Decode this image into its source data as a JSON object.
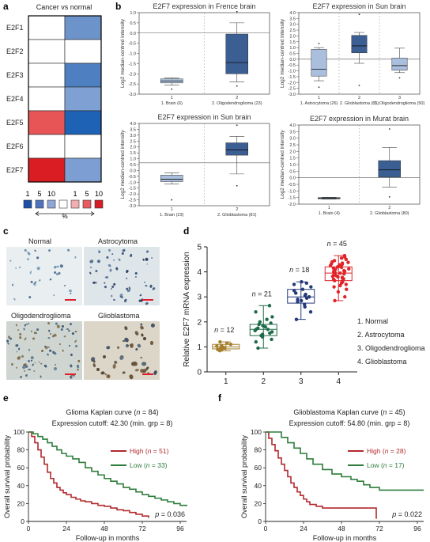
{
  "panel_letters": [
    "a",
    "b",
    "c",
    "d",
    "e",
    "f"
  ],
  "panel_a": {
    "header": "Cancer vs normal",
    "rows": [
      "E2F1",
      "E2F2",
      "E2F3",
      "E2F4",
      "E2F5",
      "E2F6",
      "E2F7"
    ],
    "cells": [
      [
        "#ffffff",
        "#6d93cb"
      ],
      [
        "#ffffff",
        "#ffffff"
      ],
      [
        "#ffffff",
        "#4e7fc0"
      ],
      [
        "#ffffff",
        "#7fa0d3"
      ],
      [
        "#e85556",
        "#1e62b6"
      ],
      [
        "#ffffff",
        "#ffffff"
      ],
      [
        "#d91d22",
        "#7d9ed2"
      ]
    ],
    "legend_numbers": [
      "1",
      "5",
      "10",
      "1",
      "5",
      "10"
    ],
    "legend_colors": [
      "#1e4fa8",
      "#4f73bc",
      "#8fa7d6",
      "#ffffff",
      "#f4aeb0",
      "#ea5b60",
      "#d61c24"
    ],
    "percent_label": "%"
  },
  "panel_b": [
    {
      "title": "E2F7 expression in Frence brain",
      "ylabel": "Log2 median-centred intensity",
      "yticks": [
        "-3.0",
        "-2.5",
        "-2.0",
        "-1.5",
        "-1.0",
        "-0.5",
        "0.0",
        "0.5",
        "1.0"
      ],
      "index_labels": [
        "1",
        "2"
      ],
      "group_labels": [
        "1. Brain (6)",
        "2. Oligodendroglioma (23)"
      ]
    },
    {
      "title": "E2F7 expression in Sun brain",
      "ylabel": "Log2 median-centred intensity",
      "yticks": [
        "-3.0",
        "-2.5",
        "-2.0",
        "-1.5",
        "-1.0",
        "-0.5",
        "0.0",
        "0.5",
        "1.0",
        "1.5",
        "2.0",
        "2.5",
        "3.0",
        "3.5",
        "4.0"
      ],
      "index_labels": [
        "1",
        "2",
        "3"
      ],
      "group_labels": [
        "1. Astrocytoma (26)",
        "2. Glioblastoma (81)",
        "3. Oligodendroglioma (50)"
      ]
    },
    {
      "title": "E2F7 expression in Sun brain",
      "ylabel": "Log2 median-centred intensity",
      "yticks": [
        "-3.0",
        "-2.5",
        "-2.0",
        "-1.5",
        "-1.0",
        "-0.5",
        "0.0",
        "0.5",
        "1.0",
        "1.5",
        "2.0",
        "2.5",
        "3.0",
        "3.5",
        "4.0"
      ],
      "index_labels": [
        "1",
        "2"
      ],
      "group_labels": [
        "1. Brain (23)",
        "2. Glioblastoma (81)"
      ]
    },
    {
      "title": "E2F7 expression in Murat brain",
      "ylabel": "Log2 median-centred intensity",
      "yticks": [
        "-2.0",
        "-1.5",
        "-1.0",
        "-0.5",
        "0.0",
        "0.5",
        "1.0",
        "1.5",
        "2.0",
        "2.5",
        "3.0",
        "3.5",
        "4.0"
      ],
      "index_labels": [
        "1",
        "2"
      ],
      "group_labels": [
        "1. Brain (4)",
        "2. Glioblastoma (80)"
      ]
    }
  ],
  "panel_c": {
    "labels": [
      "Normal",
      "Astrocytoma",
      "Oligodendroglioma",
      "Glioblastoma"
    ]
  },
  "panel_e": {
    "title": "Glioma Kaplan curve (",
    "title_n": "n",
    "title_end": " = 84)",
    "cutoff_text": "Expression cutoff: 42.30 (min. grp = 8)",
    "legend": [
      {
        "text": "High (",
        "n": "n",
        "rest": " = 51)",
        "color": "#b22a2e"
      },
      {
        "text": "Low (",
        "n": "n",
        "rest": " = 33)",
        "color": "#2e7d3b"
      }
    ],
    "p_label": "p",
    "p_value": " = 0.036",
    "ylabel": "Overall survival probability",
    "xlabel": "Follow-up in months",
    "yticks": [
      "0",
      "20",
      "40",
      "60",
      "80",
      "100"
    ],
    "xticks": [
      "0",
      "24",
      "48",
      "72",
      "96"
    ]
  },
  "panel_f": {
    "title": "Glioblastoma Kaplan curve (",
    "title_n": "n",
    "title_end": " = 45)",
    "cutoff_text": "Expression cutoff: 54.80 (min. grp = 8)",
    "legend": [
      {
        "text": "High (",
        "n": "n",
        "rest": " = 28)",
        "color": "#b22a2e"
      },
      {
        "text": "Low (",
        "n": "n",
        "rest": " = 17)",
        "color": "#2e7d3b"
      }
    ],
    "p_label": "p",
    "p_value": " = 0.022",
    "ylabel": "Overall survival probability",
    "xlabel": "Follow-up in months",
    "yticks": [
      "0",
      "20",
      "40",
      "60",
      "80",
      "100"
    ],
    "xticks": [
      "0",
      "24",
      "48",
      "72",
      "96"
    ]
  },
  "chart_data": [
    {
      "panel": "b1",
      "type": "box",
      "title": "E2F7 expression in Frence brain",
      "ylabel": "Log2 median-centred intensity",
      "ylim": [
        -3.0,
        1.0
      ],
      "categories": [
        "1",
        "2"
      ],
      "boxes": [
        {
          "whisker_low": -2.55,
          "q1": -2.45,
          "median": -2.35,
          "q3": -2.25,
          "whisker_high": -2.2,
          "outliers": [
            -2.75
          ],
          "color": "#a9bfdd"
        },
        {
          "whisker_low": -2.4,
          "q1": -2.0,
          "median": -1.45,
          "q3": -0.05,
          "whisker_high": 0.5,
          "outliers": [
            1.05,
            -2.6
          ],
          "color": "#3b5e93"
        }
      ],
      "hline": 0.0
    },
    {
      "panel": "b2",
      "type": "box",
      "title": "E2F7 expression in Sun brain",
      "ylabel": "Log2 median-centred intensity",
      "ylim": [
        -3.0,
        4.0
      ],
      "categories": [
        "1",
        "2",
        "3"
      ],
      "boxes": [
        {
          "whisker_low": -1.85,
          "q1": -1.45,
          "median": -0.85,
          "q3": 0.85,
          "whisker_high": 1.0,
          "outliers": [
            1.35,
            -2.4
          ],
          "color": "#a9bfdd"
        },
        {
          "whisker_low": -0.35,
          "q1": 0.55,
          "median": 1.15,
          "q3": 2.05,
          "whisker_high": 2.3,
          "outliers": [
            3.85,
            -2.25
          ],
          "color": "#3b5e93"
        },
        {
          "whisker_low": -1.15,
          "q1": -0.95,
          "median": -0.55,
          "q3": 0.1,
          "whisker_high": 0.95,
          "outliers": [
            -1.6
          ],
          "color": "#a9bfdd"
        }
      ],
      "hline": 0.0
    },
    {
      "panel": "b3",
      "type": "box",
      "title": "E2F7 expression in Sun brain",
      "ylabel": "Log2 median-centred intensity",
      "ylim": [
        -3.0,
        4.0
      ],
      "categories": [
        "1",
        "2"
      ],
      "boxes": [
        {
          "whisker_low": -1.15,
          "q1": -0.95,
          "median": -0.75,
          "q3": -0.4,
          "whisker_high": -0.2,
          "outliers": [
            -2.5
          ],
          "color": "#a9bfdd"
        },
        {
          "whisker_low": -0.3,
          "q1": 1.3,
          "median": 1.75,
          "q3": 2.35,
          "whisker_high": 2.9,
          "outliers": [
            3.85,
            -1.3
          ],
          "color": "#3b5e93"
        }
      ],
      "hline": 0.65
    },
    {
      "panel": "b4",
      "type": "box",
      "title": "E2F7 expression in Murat brain",
      "ylabel": "Log2 median-centred intensity",
      "ylim": [
        -2.0,
        4.0
      ],
      "categories": [
        "1",
        "2"
      ],
      "boxes": [
        {
          "whisker_low": -1.62,
          "q1": -1.6,
          "median": -1.55,
          "q3": -1.5,
          "whisker_high": -1.48,
          "outliers": [],
          "color": "#a9bfdd"
        },
        {
          "whisker_low": -0.7,
          "q1": 0.05,
          "median": 0.6,
          "q3": 1.3,
          "whisker_high": 2.3,
          "outliers": [
            3.7,
            -1.45
          ],
          "color": "#3b5e93"
        }
      ],
      "hline": 0.0
    },
    {
      "panel": "d",
      "type": "scatter",
      "ylabel": "Relative E2F7 mRNA expression",
      "xlim": [
        0.5,
        4.5
      ],
      "ylim": [
        0,
        5
      ],
      "xticks": [
        "1",
        "2",
        "3",
        "4"
      ],
      "yticks": [
        "0",
        "1",
        "2",
        "3",
        "4",
        "5"
      ],
      "legend": [
        "1. Normal",
        "2. Astrocytoma",
        "3. Oligodendroglioma",
        "4. Glioblastoma"
      ],
      "groups": [
        {
          "x": 1,
          "n_label": "n",
          "n_value": " = 12",
          "color": "#a67f2c",
          "min": 0.85,
          "q1": 0.92,
          "median": 1.0,
          "q3": 1.1,
          "max": 1.2,
          "points": [
            0.85,
            0.88,
            0.9,
            0.93,
            0.95,
            0.98,
            1.0,
            1.03,
            1.05,
            1.1,
            1.15,
            1.2
          ]
        },
        {
          "x": 2,
          "n_label": "n",
          "n_value": " = 21",
          "color": "#1d6b4a",
          "min": 0.95,
          "q1": 1.45,
          "median": 1.7,
          "q3": 1.9,
          "max": 2.65,
          "points": [
            0.95,
            1.2,
            1.3,
            1.4,
            1.45,
            1.5,
            1.55,
            1.6,
            1.65,
            1.7,
            1.7,
            1.75,
            1.8,
            1.85,
            1.9,
            1.95,
            2.0,
            2.1,
            2.2,
            2.4,
            2.65
          ]
        },
        {
          "x": 3,
          "n_label": "n",
          "n_value": " = 18",
          "color": "#243a7a",
          "min": 2.1,
          "q1": 2.75,
          "median": 3.0,
          "q3": 3.3,
          "max": 3.6,
          "points": [
            2.1,
            2.4,
            2.6,
            2.7,
            2.8,
            2.85,
            2.9,
            2.95,
            3.0,
            3.05,
            3.1,
            3.15,
            3.25,
            3.3,
            3.4,
            3.5,
            3.55,
            3.6
          ]
        },
        {
          "x": 4,
          "n_label": "n",
          "n_value": " = 45",
          "color": "#e0252a",
          "min": 2.85,
          "q1": 3.65,
          "median": 3.95,
          "q3": 4.2,
          "max": 4.65,
          "points": [
            2.85,
            3.0,
            3.2,
            3.3,
            3.4,
            3.45,
            3.5,
            3.55,
            3.6,
            3.62,
            3.65,
            3.7,
            3.72,
            3.75,
            3.78,
            3.8,
            3.82,
            3.85,
            3.88,
            3.9,
            3.92,
            3.95,
            3.97,
            4.0,
            4.02,
            4.05,
            4.08,
            4.1,
            4.12,
            4.15,
            4.18,
            4.2,
            4.22,
            4.25,
            4.28,
            4.3,
            4.32,
            4.35,
            4.38,
            4.4,
            4.45,
            4.5,
            4.55,
            4.6,
            4.65
          ]
        }
      ]
    },
    {
      "panel": "e",
      "type": "line",
      "title": "Glioma Kaplan curve (n = 84)",
      "xlabel": "Follow-up in months",
      "ylabel": "Overall survival probability",
      "xlim": [
        0,
        100
      ],
      "ylim": [
        0,
        100
      ],
      "series": [
        {
          "name": "High (n = 51)",
          "color": "#b22a2e",
          "x": [
            0,
            2,
            4,
            6,
            8,
            10,
            12,
            14,
            16,
            18,
            20,
            22,
            24,
            27,
            30,
            33,
            36,
            40,
            44,
            48,
            52,
            56,
            60,
            64,
            68,
            72,
            76
          ],
          "y": [
            100,
            95,
            88,
            80,
            72,
            64,
            55,
            48,
            43,
            38,
            35,
            32,
            30,
            27,
            25,
            23,
            22,
            20,
            18,
            17,
            15,
            13,
            12,
            10,
            8,
            6,
            4
          ]
        },
        {
          "name": "Low (n = 33)",
          "color": "#2e7d3b",
          "x": [
            0,
            3,
            6,
            9,
            12,
            15,
            18,
            21,
            24,
            28,
            32,
            36,
            40,
            44,
            48,
            52,
            56,
            60,
            64,
            68,
            72,
            76,
            80,
            84,
            88,
            92,
            96,
            100
          ],
          "y": [
            100,
            98,
            95,
            92,
            88,
            84,
            80,
            76,
            73,
            70,
            66,
            60,
            56,
            52,
            48,
            45,
            42,
            38,
            36,
            33,
            30,
            28,
            26,
            24,
            22,
            20,
            18,
            17
          ]
        }
      ]
    },
    {
      "panel": "f",
      "type": "line",
      "title": "Glioblastoma Kaplan curve (n = 45)",
      "xlabel": "Follow-up in months",
      "ylabel": "Overall survival probability",
      "xlim": [
        0,
        100
      ],
      "ylim": [
        0,
        100
      ],
      "series": [
        {
          "name": "High (n = 28)",
          "color": "#b22a2e",
          "x": [
            0,
            2,
            4,
            6,
            8,
            10,
            12,
            14,
            16,
            18,
            20,
            22,
            24,
            26,
            28,
            32,
            36,
            40,
            44,
            48,
            56,
            64,
            70,
            70
          ],
          "y": [
            100,
            93,
            86,
            79,
            71,
            64,
            57,
            50,
            43,
            38,
            33,
            29,
            25,
            22,
            19,
            17,
            15,
            15,
            15,
            15,
            15,
            15,
            15,
            3
          ]
        },
        {
          "name": "Low (n = 17)",
          "color": "#2e7d3b",
          "x": [
            0,
            6,
            10,
            14,
            18,
            22,
            26,
            30,
            36,
            42,
            48,
            54,
            58,
            62,
            66,
            72,
            78,
            84,
            90,
            96,
            100
          ],
          "y": [
            100,
            100,
            94,
            88,
            82,
            76,
            70,
            64,
            58,
            53,
            50,
            47,
            45,
            41,
            38,
            35,
            35,
            35,
            35,
            35,
            35
          ]
        }
      ]
    }
  ]
}
